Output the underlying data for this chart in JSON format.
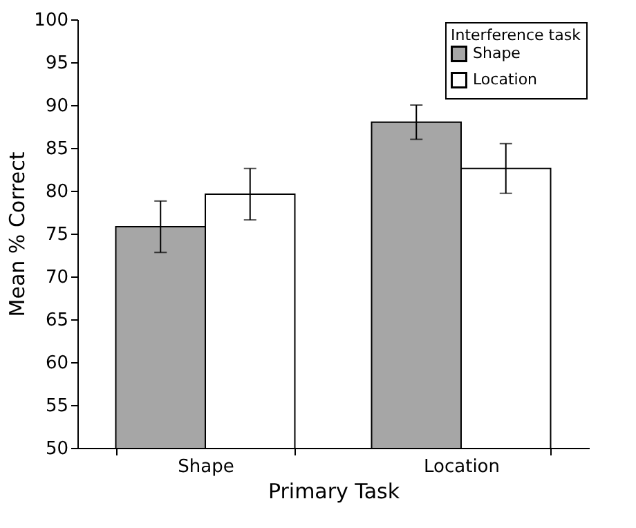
{
  "chart_data": {
    "type": "bar",
    "xlabel": "Primary Task",
    "ylabel": "Mean % Correct",
    "legend_title": "Interference task",
    "categories": [
      "Shape",
      "Location"
    ],
    "series": [
      {
        "name": "Shape",
        "color": "#a6a6a6",
        "values": [
          75.8,
          88.0
        ],
        "errors": [
          3.0,
          2.0
        ]
      },
      {
        "name": "Location",
        "color": "#ffffff",
        "values": [
          79.6,
          82.6
        ],
        "errors": [
          3.0,
          2.9
        ]
      }
    ],
    "ylim": [
      50,
      100
    ],
    "yticks": [
      50,
      55,
      60,
      65,
      70,
      75,
      80,
      85,
      90,
      95,
      100
    ],
    "grid": false,
    "legend": "top right"
  }
}
